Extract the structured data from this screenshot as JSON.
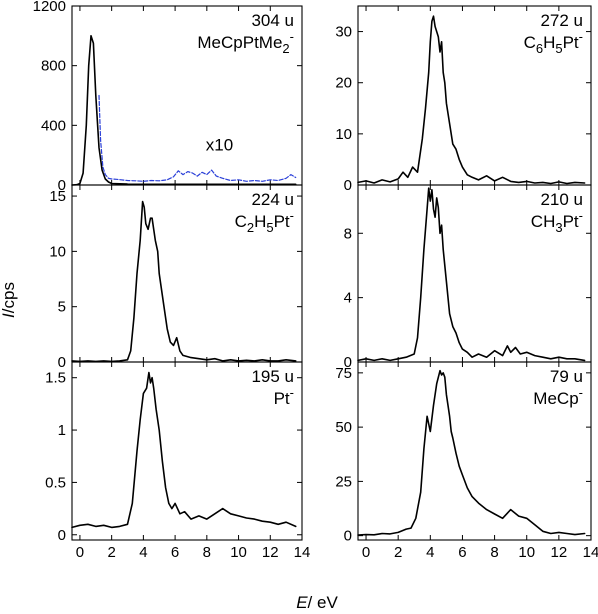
{
  "figure": {
    "xlabel": "E/ eV",
    "ylabel": "I/cps"
  },
  "chart_data": [
    {
      "type": "line",
      "panel": "top-left",
      "label_mass": "304 u",
      "label_species": "MeCpPtMe2-",
      "label_species_parts": [
        {
          "t": "MeCpPtMe"
        },
        {
          "t": "2",
          "sub": true
        },
        {
          "t": "-",
          "sup": true
        }
      ],
      "annotation": "x10",
      "xlim": [
        -0.5,
        14
      ],
      "ylim": [
        0,
        1200
      ],
      "xticks": [
        0,
        2,
        4,
        6,
        8,
        10,
        12,
        14
      ],
      "yticks": [
        0,
        400,
        800,
        1200
      ],
      "ytick_labels": [
        "0",
        "400",
        "800",
        "1200"
      ],
      "series": [
        {
          "color": "#000000",
          "dash": "",
          "x": [
            -0.5,
            -0.2,
            0,
            0.2,
            0.4,
            0.55,
            0.7,
            0.85,
            1.0,
            1.2,
            1.4,
            1.6,
            1.8,
            2.0,
            2.5,
            3,
            4,
            5,
            6,
            7,
            8,
            9,
            10,
            11,
            12,
            13,
            13.6
          ],
          "y": [
            0,
            2,
            10,
            80,
            400,
            800,
            1000,
            950,
            600,
            250,
            100,
            40,
            20,
            10,
            8,
            6,
            5,
            5,
            5,
            5,
            5,
            5,
            5,
            5,
            5,
            5,
            5
          ]
        },
        {
          "color": "#2a3fd8",
          "dash": "4,2",
          "x": [
            1.2,
            1.3,
            1.45,
            1.6,
            1.8,
            2.0,
            2.3,
            2.6,
            3,
            3.5,
            4,
            4.5,
            5,
            5.5,
            5.9,
            6.2,
            6.5,
            6.8,
            7.1,
            7.4,
            7.7,
            8.0,
            8.3,
            8.6,
            9,
            9.5,
            10,
            10.5,
            11,
            11.5,
            12,
            12.5,
            13,
            13.3,
            13.6
          ],
          "y": [
            600,
            300,
            120,
            70,
            45,
            40,
            38,
            35,
            30,
            28,
            25,
            30,
            28,
            35,
            55,
            95,
            70,
            90,
            80,
            60,
            85,
            70,
            100,
            60,
            45,
            30,
            35,
            25,
            30,
            25,
            35,
            30,
            45,
            70,
            50
          ]
        }
      ]
    },
    {
      "type": "line",
      "panel": "top-right",
      "label_mass": "272 u",
      "label_species": "C6H5Pt-",
      "label_species_parts": [
        {
          "t": "C"
        },
        {
          "t": "6",
          "sub": true
        },
        {
          "t": "H"
        },
        {
          "t": "5",
          "sub": true
        },
        {
          "t": "Pt"
        },
        {
          "t": "-",
          "sup": true
        }
      ],
      "xlim": [
        -0.5,
        14
      ],
      "ylim": [
        0,
        35
      ],
      "xticks": [
        0,
        2,
        4,
        6,
        8,
        10,
        12,
        14
      ],
      "yticks": [
        0,
        10,
        20,
        30
      ],
      "ytick_labels": [
        "0",
        "10",
        "20",
        "30"
      ],
      "series": [
        {
          "color": "#000000",
          "dash": "",
          "x": [
            -0.5,
            0,
            0.5,
            1,
            1.5,
            2,
            2.3,
            2.6,
            2.9,
            3.2,
            3.5,
            3.7,
            3.9,
            4.0,
            4.1,
            4.2,
            4.3,
            4.4,
            4.5,
            4.6,
            4.7,
            4.8,
            4.9,
            5.0,
            5.2,
            5.4,
            5.6,
            5.8,
            6.0,
            6.3,
            6.6,
            7,
            7.5,
            8,
            8.5,
            9,
            9.5,
            10,
            10.5,
            11,
            11.5,
            12,
            12.5,
            13,
            13.6
          ],
          "y": [
            0.5,
            0.8,
            0.4,
            1,
            0.6,
            1.2,
            2.5,
            1.5,
            3.5,
            2.5,
            9,
            15,
            22,
            28,
            32,
            33,
            31,
            30,
            29,
            26,
            28,
            22,
            20,
            16,
            12,
            8,
            7,
            5,
            3.5,
            2,
            1.5,
            1,
            1.8,
            0.8,
            1.5,
            0.7,
            0.5,
            0.7,
            0.4,
            0.5,
            0.3,
            0.6,
            0.3,
            0.5,
            0.4
          ]
        }
      ]
    },
    {
      "type": "line",
      "panel": "middle-left",
      "label_mass": "224 u",
      "label_species": "C2H5Pt-",
      "label_species_parts": [
        {
          "t": "C"
        },
        {
          "t": "2",
          "sub": true
        },
        {
          "t": "H"
        },
        {
          "t": "5",
          "sub": true
        },
        {
          "t": "Pt"
        },
        {
          "t": "-",
          "sup": true
        }
      ],
      "xlim": [
        -0.5,
        14
      ],
      "ylim": [
        0,
        16
      ],
      "xticks": [
        0,
        2,
        4,
        6,
        8,
        10,
        12,
        14
      ],
      "yticks": [
        0,
        5,
        10,
        15
      ],
      "ytick_labels": [
        "0",
        "5",
        "10",
        "15"
      ],
      "series": [
        {
          "color": "#000000",
          "dash": "",
          "x": [
            -0.5,
            0,
            0.5,
            1,
            1.5,
            2,
            2.5,
            3,
            3.2,
            3.4,
            3.6,
            3.8,
            3.95,
            4.05,
            4.15,
            4.3,
            4.45,
            4.55,
            4.65,
            4.75,
            4.9,
            5.0,
            5.1,
            5.3,
            5.5,
            5.7,
            5.9,
            6.1,
            6.3,
            6.5,
            7,
            7.5,
            8,
            8.5,
            9,
            9.5,
            10,
            10.5,
            11,
            11.5,
            12,
            12.5,
            13,
            13.6
          ],
          "y": [
            0.1,
            0.05,
            0.1,
            0.05,
            0.1,
            0.05,
            0.1,
            0.2,
            1,
            4,
            8,
            11,
            14.5,
            14,
            12.5,
            12,
            13,
            13,
            12,
            11,
            10,
            8,
            7,
            5,
            3,
            1.8,
            1.5,
            2.2,
            1,
            0.6,
            0.4,
            0.3,
            0.2,
            0.3,
            0.1,
            0.2,
            0.1,
            0.15,
            0.1,
            0.2,
            0.1,
            0.1,
            0.2,
            0.1
          ]
        }
      ]
    },
    {
      "type": "line",
      "panel": "middle-right",
      "label_mass": "210 u",
      "label_species": "CH3Pt-",
      "label_species_parts": [
        {
          "t": "CH"
        },
        {
          "t": "3",
          "sub": true
        },
        {
          "t": "Pt"
        },
        {
          "t": "-",
          "sup": true
        }
      ],
      "xlim": [
        -0.5,
        14
      ],
      "ylim": [
        0,
        11
      ],
      "xticks": [
        0,
        2,
        4,
        6,
        8,
        10,
        12,
        14
      ],
      "yticks": [
        0,
        4,
        8
      ],
      "ytick_labels": [
        "0",
        "4",
        "8"
      ],
      "series": [
        {
          "color": "#000000",
          "dash": "",
          "x": [
            -0.5,
            0,
            0.5,
            1,
            1.5,
            2,
            2.5,
            3,
            3.2,
            3.4,
            3.6,
            3.8,
            3.9,
            4.0,
            4.1,
            4.2,
            4.3,
            4.4,
            4.5,
            4.6,
            4.7,
            4.8,
            4.9,
            5.0,
            5.2,
            5.4,
            5.6,
            5.8,
            6.0,
            6.3,
            6.6,
            7,
            7.5,
            8,
            8.5,
            8.8,
            9,
            9.3,
            9.6,
            10,
            10.5,
            11,
            11.5,
            12,
            12.5,
            13,
            13.6
          ],
          "y": [
            0.1,
            0.2,
            0.1,
            0.2,
            0.1,
            0.2,
            0.3,
            0.5,
            1.5,
            4,
            7,
            9.5,
            10.8,
            10,
            10.7,
            9.5,
            9,
            10.2,
            9.6,
            8,
            8.5,
            7,
            6,
            5,
            3,
            2.2,
            1.8,
            1.2,
            0.8,
            0.6,
            0.3,
            0.5,
            0.3,
            0.7,
            0.4,
            1.0,
            0.6,
            0.9,
            0.5,
            0.6,
            0.4,
            0.3,
            0.2,
            0.3,
            0.2,
            0.2,
            0.1
          ]
        }
      ]
    },
    {
      "type": "line",
      "panel": "bottom-left",
      "label_mass": "195 u",
      "label_species": "Pt-",
      "label_species_parts": [
        {
          "t": "Pt"
        },
        {
          "t": "-",
          "sup": true
        }
      ],
      "xlim": [
        -0.5,
        14
      ],
      "ylim": [
        -0.05,
        1.65
      ],
      "xticks": [
        0,
        2,
        4,
        6,
        8,
        10,
        12,
        14
      ],
      "xtick_labels": [
        "0",
        "2",
        "4",
        "6",
        "8",
        "10",
        "12",
        "14"
      ],
      "yticks": [
        0,
        0.5,
        1,
        1.5
      ],
      "ytick_labels": [
        "0",
        "0.5",
        "1",
        "1.5"
      ],
      "series": [
        {
          "color": "#000000",
          "dash": "",
          "x": [
            -0.5,
            0,
            0.5,
            1,
            1.5,
            2,
            2.5,
            3,
            3.3,
            3.6,
            3.8,
            4.0,
            4.2,
            4.35,
            4.45,
            4.55,
            4.65,
            4.8,
            5.0,
            5.2,
            5.4,
            5.6,
            5.8,
            6.0,
            6.3,
            6.6,
            7,
            7.5,
            8,
            8.5,
            9,
            9.5,
            10,
            10.5,
            11,
            11.5,
            12,
            12.5,
            13,
            13.6
          ],
          "y": [
            0.07,
            0.09,
            0.1,
            0.08,
            0.09,
            0.07,
            0.08,
            0.1,
            0.3,
            0.8,
            1.1,
            1.35,
            1.4,
            1.55,
            1.45,
            1.5,
            1.4,
            1.2,
            1.0,
            0.7,
            0.45,
            0.3,
            0.25,
            0.3,
            0.2,
            0.22,
            0.15,
            0.18,
            0.15,
            0.2,
            0.25,
            0.2,
            0.18,
            0.16,
            0.15,
            0.13,
            0.12,
            0.1,
            0.12,
            0.08
          ]
        }
      ]
    },
    {
      "type": "line",
      "panel": "bottom-right",
      "label_mass": "79 u",
      "label_species": "MeCp-",
      "label_species_parts": [
        {
          "t": "MeCp"
        },
        {
          "t": "-",
          "sup": true
        }
      ],
      "xlim": [
        -0.5,
        14
      ],
      "ylim": [
        -2,
        80
      ],
      "xticks": [
        0,
        2,
        4,
        6,
        8,
        10,
        12,
        14
      ],
      "xtick_labels": [
        "0",
        "2",
        "4",
        "6",
        "8",
        "10",
        "12",
        "14"
      ],
      "yticks": [
        0,
        25,
        50,
        75
      ],
      "ytick_labels": [
        "0",
        "25",
        "50",
        "75"
      ],
      "series": [
        {
          "color": "#000000",
          "dash": "",
          "x": [
            -0.5,
            0,
            0.5,
            1,
            1.5,
            2,
            2.5,
            2.8,
            3.1,
            3.4,
            3.6,
            3.8,
            4.0,
            4.2,
            4.4,
            4.6,
            4.7,
            4.8,
            4.9,
            5.0,
            5.1,
            5.2,
            5.3,
            5.4,
            5.6,
            5.8,
            6.0,
            6.3,
            6.6,
            7,
            7.5,
            8,
            8.5,
            9,
            9.5,
            10,
            10.5,
            11,
            11.5,
            12,
            12.5,
            13,
            13.6
          ],
          "y": [
            0.3,
            0.5,
            0.4,
            1,
            0.8,
            1.5,
            3,
            3.5,
            8,
            20,
            40,
            55,
            48,
            60,
            70,
            76,
            74,
            75,
            73,
            65,
            60,
            55,
            48,
            45,
            38,
            32,
            28,
            22,
            18,
            15,
            12,
            10,
            8,
            12,
            9,
            8,
            5,
            2,
            1,
            1.5,
            1,
            0.5,
            1
          ]
        }
      ]
    }
  ]
}
